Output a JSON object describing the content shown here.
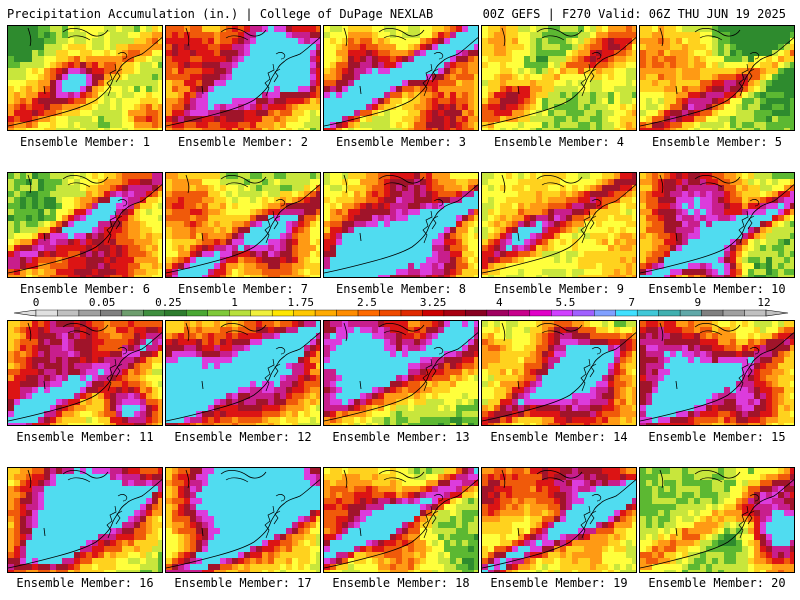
{
  "header": {
    "title": "Precipitation Accumulation (in.) | College of DuPage NEXLAB",
    "run_info": "00Z GEFS | F270 Valid: 06Z THU JUN 19 2025"
  },
  "members": [
    {
      "label": "Ensemble Member: 1"
    },
    {
      "label": "Ensemble Member: 2"
    },
    {
      "label": "Ensemble Member: 3"
    },
    {
      "label": "Ensemble Member: 4"
    },
    {
      "label": "Ensemble Member: 5"
    },
    {
      "label": "Ensemble Member: 6"
    },
    {
      "label": "Ensemble Member: 7"
    },
    {
      "label": "Ensemble Member: 8"
    },
    {
      "label": "Ensemble Member: 9"
    },
    {
      "label": "Ensemble Member: 10"
    },
    {
      "label": "Ensemble Member: 11"
    },
    {
      "label": "Ensemble Member: 12"
    },
    {
      "label": "Ensemble Member: 13"
    },
    {
      "label": "Ensemble Member: 14"
    },
    {
      "label": "Ensemble Member: 15"
    },
    {
      "label": "Ensemble Member: 16"
    },
    {
      "label": "Ensemble Member: 17"
    },
    {
      "label": "Ensemble Member: 18"
    },
    {
      "label": "Ensemble Member: 19"
    },
    {
      "label": "Ensemble Member: 20"
    }
  ],
  "colorbar": {
    "labels": [
      "0",
      "0.05",
      "0.25",
      "1",
      "1.75",
      "2.5",
      "3.25",
      "4",
      "5.5",
      "7",
      "9",
      "12"
    ],
    "colors": [
      "#e0e0e0",
      "#c0c0c0",
      "#a0a0a0",
      "#808080",
      "#6e9e6e",
      "#3f8f3f",
      "#2e7d2e",
      "#4aa834",
      "#7fc93a",
      "#b8e03c",
      "#f0f03c",
      "#ffe600",
      "#ffc800",
      "#ffaa00",
      "#ff8c00",
      "#ff6a00",
      "#f04a00",
      "#e02a00",
      "#cc0000",
      "#a80010",
      "#880020",
      "#a00060",
      "#c8008c",
      "#e000c8",
      "#d040ff",
      "#a060ff",
      "#80a0ff",
      "#40e0ff",
      "#40c8d8",
      "#40b0b0",
      "#60a8a8",
      "#808080",
      "#a0a0a0",
      "#c0c0c0"
    ]
  },
  "map_palette": {
    "green_dark": "#2e8b2e",
    "green": "#5cb832",
    "yellow_green": "#c8e63c",
    "yellow": "#ffff3c",
    "gold": "#ffd21e",
    "orange": "#ff9a14",
    "red_orange": "#f05a0a",
    "red": "#dc1414",
    "dark_red": "#a0142a",
    "magenta": "#c81e8c",
    "purple": "#dc3cdc",
    "cyan": "#50dcf0"
  }
}
